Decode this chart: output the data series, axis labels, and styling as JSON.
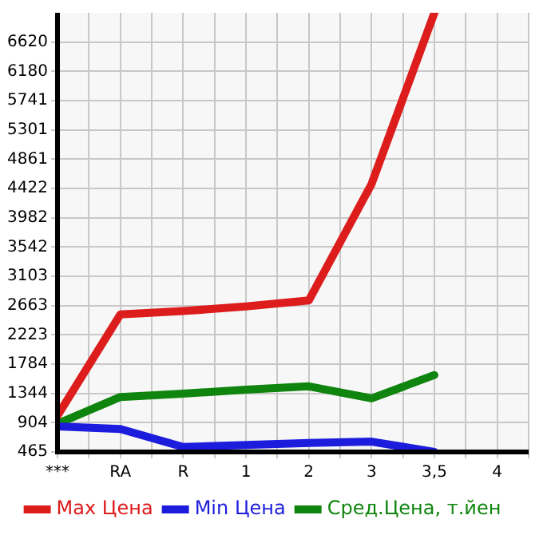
{
  "chart_data": {
    "type": "line",
    "categories": [
      "***",
      "RA",
      "R",
      "1",
      "2",
      "3",
      "3,5",
      "4"
    ],
    "series": [
      {
        "name": "Max Цена",
        "color": "#dd1c1c",
        "values": [
          1010,
          2530,
          2580,
          2650,
          2740,
          4490,
          7060,
          null
        ]
      },
      {
        "name": "Min Цена",
        "color": "#1c1cdd",
        "values": [
          850,
          810,
          540,
          570,
          600,
          620,
          465,
          null
        ]
      },
      {
        "name": "Сред.Цена, т.йен",
        "color": "#0f850f",
        "values": [
          890,
          1290,
          1340,
          1400,
          1450,
          1270,
          1620,
          null
        ]
      }
    ],
    "ylim": [
      465,
      7060
    ],
    "yticks": [
      465,
      904,
      1344,
      1784,
      2223,
      2663,
      3103,
      3542,
      3982,
      4422,
      4861,
      5301,
      5741,
      6180,
      6620
    ],
    "grid": true,
    "legend": "bottom",
    "marker": "none",
    "line_style": "solid"
  }
}
